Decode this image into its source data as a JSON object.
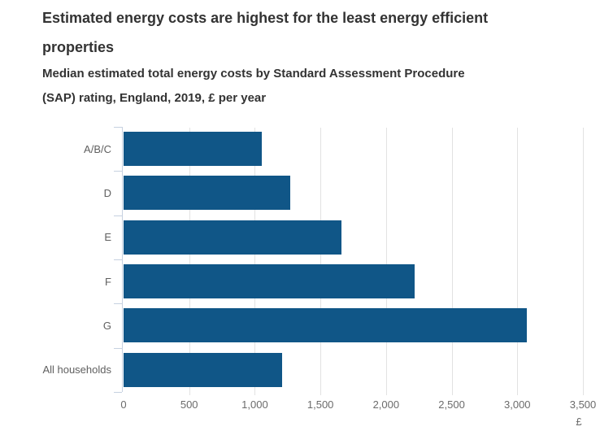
{
  "header": {
    "title_lines": [
      "Estimated energy costs are highest for the least energy efficient",
      "properties"
    ],
    "subtitle_lines": [
      "Median estimated total energy costs by Standard Assessment Procedure",
      "(SAP) rating, England, 2019, £ per year"
    ]
  },
  "chart_data": {
    "type": "bar",
    "orientation": "horizontal",
    "title": "Estimated energy costs are highest for the least energy efficient properties",
    "subtitle": "Median estimated total energy costs by Standard Assessment Procedure (SAP) rating, England, 2019, £ per year",
    "categories": [
      "A/B/C",
      "D",
      "E",
      "F",
      "G",
      "All households"
    ],
    "values": [
      1050,
      1270,
      1660,
      2220,
      3070,
      1210
    ],
    "xlabel": "£",
    "ylabel": "",
    "xlim": [
      0,
      3500
    ],
    "xticks": [
      0,
      500,
      1000,
      1500,
      2000,
      2500,
      3000,
      3500
    ],
    "xtick_labels": [
      "0",
      "500",
      "1,000",
      "1,500",
      "2,000",
      "2,500",
      "3,000",
      "3,500"
    ],
    "grid": "vertical-only",
    "legend": "none",
    "bar_color": "#105687",
    "axis_line_color": "#c6d1e0",
    "gridline_color": "#e2e2e2",
    "text_color": "#333333",
    "tick_text_color": "#6b6b6b"
  }
}
